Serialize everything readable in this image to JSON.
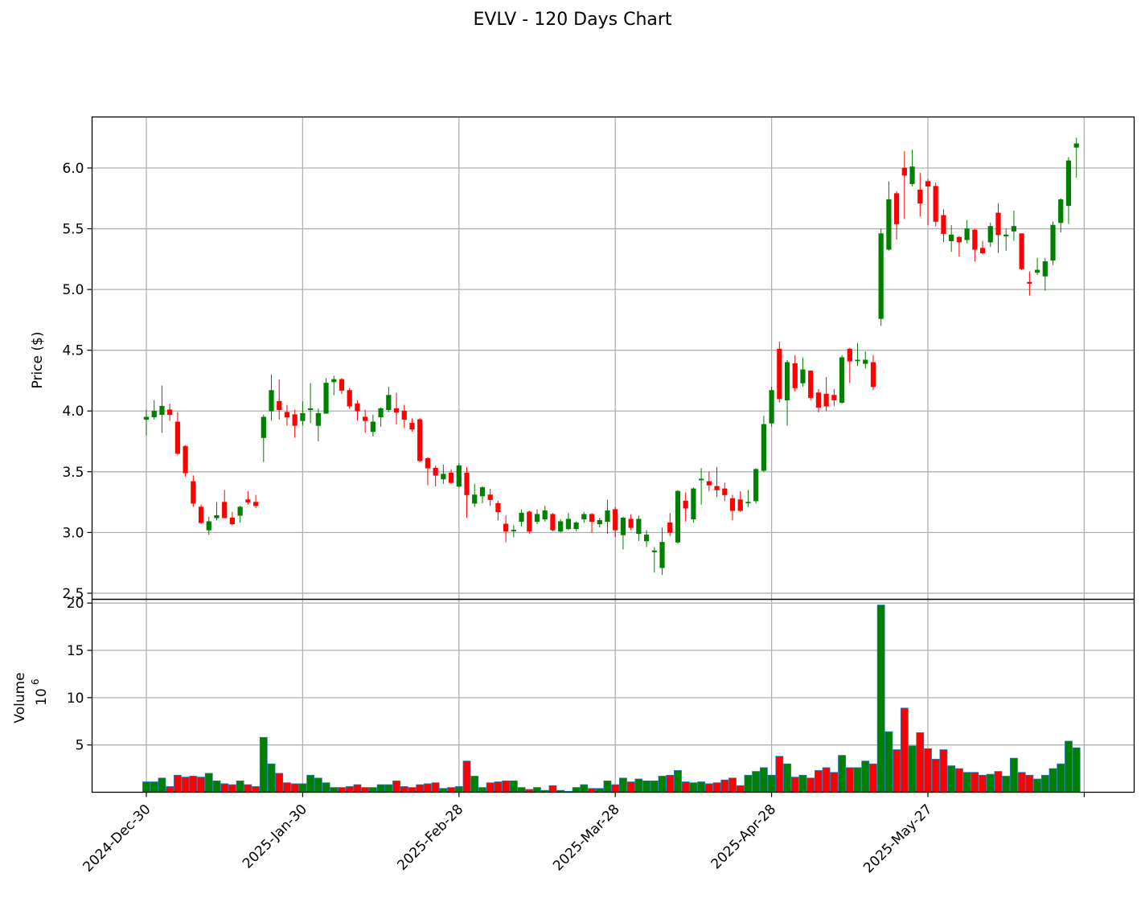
{
  "title": "EVLV - 120 Days Chart",
  "colors": {
    "up": "#008000",
    "down": "#ff0000",
    "vol_edge": "#1f77b4",
    "grid": "#b0b0b0",
    "axis": "#000000"
  },
  "chart_data": [
    {
      "type": "candlestick",
      "ylabel": "Price ($)",
      "ylim": [
        2.45,
        6.42
      ],
      "yticks": [
        "2.5",
        "3.0",
        "3.5",
        "4.0",
        "4.5",
        "5.0",
        "5.5",
        "6.0"
      ],
      "grid": true,
      "candles": [
        [
          3.93,
          3.95,
          3.8,
          4.01
        ],
        [
          3.95,
          4.0,
          3.93,
          4.09
        ],
        [
          3.97,
          4.04,
          3.82,
          4.21
        ],
        [
          4.01,
          3.97,
          3.92,
          4.06
        ],
        [
          3.91,
          3.65,
          3.64,
          3.99
        ],
        [
          3.71,
          3.49,
          3.46,
          3.72
        ],
        [
          3.42,
          3.24,
          3.21,
          3.47
        ],
        [
          3.21,
          3.08,
          3.07,
          3.23
        ],
        [
          3.02,
          3.09,
          2.98,
          3.13
        ],
        [
          3.12,
          3.14,
          3.1,
          3.25
        ],
        [
          3.25,
          3.12,
          3.12,
          3.35
        ],
        [
          3.12,
          3.07,
          3.06,
          3.17
        ],
        [
          3.14,
          3.21,
          3.08,
          3.22
        ],
        [
          3.27,
          3.25,
          3.23,
          3.34
        ],
        [
          3.25,
          3.22,
          3.2,
          3.31
        ],
        [
          3.78,
          3.95,
          3.58,
          3.97
        ],
        [
          4.0,
          4.17,
          3.92,
          4.3
        ],
        [
          4.08,
          4.01,
          3.93,
          4.26
        ],
        [
          3.99,
          3.95,
          3.88,
          4.05
        ],
        [
          3.97,
          3.88,
          3.78,
          4.01
        ],
        [
          3.92,
          3.98,
          3.88,
          4.08
        ],
        [
          4.01,
          4.02,
          3.9,
          4.23
        ],
        [
          3.88,
          3.98,
          3.75,
          4.02
        ],
        [
          3.98,
          4.23,
          3.98,
          4.27
        ],
        [
          4.24,
          4.26,
          4.13,
          4.29
        ],
        [
          4.26,
          4.17,
          4.14,
          4.27
        ],
        [
          4.17,
          4.04,
          4.02,
          4.19
        ],
        [
          4.06,
          4.0,
          3.92,
          4.09
        ],
        [
          3.95,
          3.92,
          3.82,
          4.01
        ],
        [
          3.83,
          3.91,
          3.79,
          3.97
        ],
        [
          3.95,
          4.02,
          3.87,
          4.03
        ],
        [
          4.01,
          4.13,
          3.99,
          4.2
        ],
        [
          4.02,
          3.99,
          3.89,
          4.15
        ],
        [
          4.0,
          3.93,
          3.86,
          4.05
        ],
        [
          3.9,
          3.85,
          3.83,
          3.94
        ],
        [
          3.93,
          3.59,
          3.58,
          3.94
        ],
        [
          3.61,
          3.53,
          3.39,
          3.62
        ],
        [
          3.53,
          3.47,
          3.38,
          3.55
        ],
        [
          3.44,
          3.48,
          3.4,
          3.56
        ],
        [
          3.49,
          3.41,
          3.4,
          3.52
        ],
        [
          3.38,
          3.55,
          3.37,
          3.57
        ],
        [
          3.49,
          3.31,
          3.12,
          3.54
        ],
        [
          3.24,
          3.31,
          3.21,
          3.4
        ],
        [
          3.3,
          3.37,
          3.24,
          3.38
        ],
        [
          3.31,
          3.27,
          3.22,
          3.36
        ],
        [
          3.24,
          3.17,
          3.1,
          3.26
        ],
        [
          3.07,
          3.01,
          2.92,
          3.14
        ],
        [
          3.02,
          3.02,
          2.96,
          3.06
        ],
        [
          3.09,
          3.16,
          3.05,
          3.19
        ],
        [
          3.17,
          3.01,
          2.99,
          3.18
        ],
        [
          3.09,
          3.15,
          3.07,
          3.19
        ],
        [
          3.11,
          3.18,
          3.09,
          3.22
        ],
        [
          3.15,
          3.02,
          3.01,
          3.16
        ],
        [
          3.01,
          3.09,
          3.0,
          3.11
        ],
        [
          3.03,
          3.11,
          3.02,
          3.16
        ],
        [
          3.03,
          3.08,
          3.01,
          3.09
        ],
        [
          3.11,
          3.15,
          3.08,
          3.17
        ],
        [
          3.15,
          3.09,
          3.0,
          3.16
        ],
        [
          3.07,
          3.1,
          3.04,
          3.12
        ],
        [
          3.09,
          3.18,
          2.99,
          3.27
        ],
        [
          3.19,
          3.02,
          2.96,
          3.21
        ],
        [
          2.98,
          3.12,
          2.86,
          3.13
        ],
        [
          3.11,
          3.04,
          3.02,
          3.15
        ],
        [
          2.99,
          3.11,
          2.93,
          3.14
        ],
        [
          2.93,
          2.98,
          2.88,
          3.02
        ],
        [
          2.84,
          2.85,
          2.67,
          2.88
        ],
        [
          2.71,
          2.92,
          2.65,
          3.04
        ],
        [
          3.08,
          3.0,
          2.97,
          3.16
        ],
        [
          2.92,
          3.34,
          2.91,
          3.35
        ],
        [
          3.26,
          3.2,
          3.09,
          3.33
        ],
        [
          3.11,
          3.36,
          3.08,
          3.37
        ],
        [
          3.44,
          3.44,
          3.23,
          3.53
        ],
        [
          3.42,
          3.39,
          3.34,
          3.5
        ],
        [
          3.38,
          3.35,
          3.29,
          3.54
        ],
        [
          3.36,
          3.31,
          3.26,
          3.41
        ],
        [
          3.28,
          3.18,
          3.1,
          3.31
        ],
        [
          3.27,
          3.18,
          3.17,
          3.34
        ],
        [
          3.25,
          3.25,
          3.21,
          3.35
        ],
        [
          3.26,
          3.52,
          3.24,
          3.53
        ],
        [
          3.51,
          3.89,
          3.5,
          3.96
        ],
        [
          3.9,
          4.17,
          3.87,
          4.2
        ],
        [
          4.51,
          4.1,
          4.07,
          4.57
        ],
        [
          4.09,
          4.4,
          3.88,
          4.42
        ],
        [
          4.39,
          4.19,
          4.16,
          4.46
        ],
        [
          4.23,
          4.34,
          4.2,
          4.44
        ],
        [
          4.33,
          4.11,
          4.09,
          4.33
        ],
        [
          4.15,
          4.03,
          3.99,
          4.18
        ],
        [
          4.14,
          4.04,
          4.0,
          4.28
        ],
        [
          4.13,
          4.09,
          4.04,
          4.18
        ],
        [
          4.07,
          4.44,
          4.06,
          4.46
        ],
        [
          4.51,
          4.41,
          4.23,
          4.52
        ],
        [
          4.42,
          4.42,
          4.37,
          4.56
        ],
        [
          4.39,
          4.42,
          4.35,
          4.49
        ],
        [
          4.4,
          4.2,
          4.17,
          4.46
        ],
        [
          4.76,
          5.46,
          4.7,
          5.5
        ],
        [
          5.33,
          5.74,
          5.32,
          5.89
        ],
        [
          5.79,
          5.54,
          5.41,
          5.81
        ],
        [
          6.0,
          5.94,
          5.58,
          6.14
        ],
        [
          5.87,
          6.01,
          5.85,
          6.15
        ],
        [
          5.82,
          5.71,
          5.6,
          5.96
        ],
        [
          5.89,
          5.85,
          5.53,
          5.91
        ],
        [
          5.85,
          5.56,
          5.52,
          5.88
        ],
        [
          5.61,
          5.46,
          5.39,
          5.66
        ],
        [
          5.4,
          5.45,
          5.31,
          5.53
        ],
        [
          5.43,
          5.39,
          5.27,
          5.44
        ],
        [
          5.41,
          5.5,
          5.38,
          5.57
        ],
        [
          5.49,
          5.33,
          5.23,
          5.5
        ],
        [
          5.34,
          5.3,
          5.29,
          5.4
        ],
        [
          5.39,
          5.52,
          5.35,
          5.55
        ],
        [
          5.63,
          5.45,
          5.3,
          5.71
        ],
        [
          5.44,
          5.45,
          5.32,
          5.5
        ],
        [
          5.48,
          5.52,
          5.4,
          5.65
        ],
        [
          5.46,
          5.17,
          5.16,
          5.46
        ],
        [
          5.06,
          5.05,
          4.95,
          5.15
        ],
        [
          5.14,
          5.16,
          5.12,
          5.26
        ],
        [
          5.11,
          5.23,
          4.99,
          5.26
        ],
        [
          5.24,
          5.53,
          5.2,
          5.56
        ],
        [
          5.55,
          5.74,
          5.47,
          5.75
        ],
        [
          5.69,
          6.06,
          5.54,
          6.09
        ],
        [
          6.17,
          6.2,
          5.92,
          6.25
        ]
      ]
    },
    {
      "type": "bar",
      "ylabel": "Volume",
      "yunit": "10",
      "yunit_exp": "6",
      "ylim": [
        0,
        20.4
      ],
      "yticks": [
        "5",
        "10",
        "15",
        "20"
      ],
      "xticks": [
        "2024-Dec-30",
        "2025-Jan-30",
        "2025-Feb-28",
        "2025-Mar-28",
        "2025-Apr-28",
        "2025-May-27"
      ],
      "grid": true,
      "values": [
        1.1,
        1.1,
        1.5,
        0.6,
        1.8,
        1.6,
        1.7,
        1.6,
        2.0,
        1.2,
        0.9,
        0.8,
        1.2,
        0.8,
        0.6,
        5.8,
        3.0,
        2.0,
        1.0,
        0.9,
        0.9,
        1.8,
        1.5,
        1.0,
        0.5,
        0.5,
        0.6,
        0.8,
        0.5,
        0.5,
        0.8,
        0.8,
        1.2,
        0.6,
        0.5,
        0.8,
        0.9,
        1.0,
        0.4,
        0.5,
        0.6,
        3.3,
        1.7,
        0.5,
        1.0,
        1.1,
        1.2,
        1.2,
        0.5,
        0.3,
        0.5,
        0.2,
        0.7,
        0.2,
        0.1,
        0.5,
        0.8,
        0.4,
        0.4,
        1.2,
        0.8,
        1.5,
        1.1,
        1.4,
        1.2,
        1.2,
        1.7,
        1.8,
        2.3,
        1.1,
        1.0,
        1.1,
        0.9,
        1.0,
        1.3,
        1.5,
        0.7,
        1.8,
        2.2,
        2.6,
        1.8,
        3.8,
        3.0,
        1.6,
        1.8,
        1.5,
        2.3,
        2.6,
        2.1,
        3.9,
        2.6,
        2.6,
        3.3,
        3.0,
        19.8,
        6.4,
        4.5,
        8.9,
        4.9,
        6.3,
        4.6,
        3.5,
        4.5,
        2.8,
        2.5,
        2.1,
        2.1,
        1.8,
        1.9,
        2.2,
        1.7,
        3.6,
        2.1,
        1.8,
        1.4,
        1.8,
        2.5,
        3.0,
        5.4,
        4.7
      ]
    }
  ]
}
